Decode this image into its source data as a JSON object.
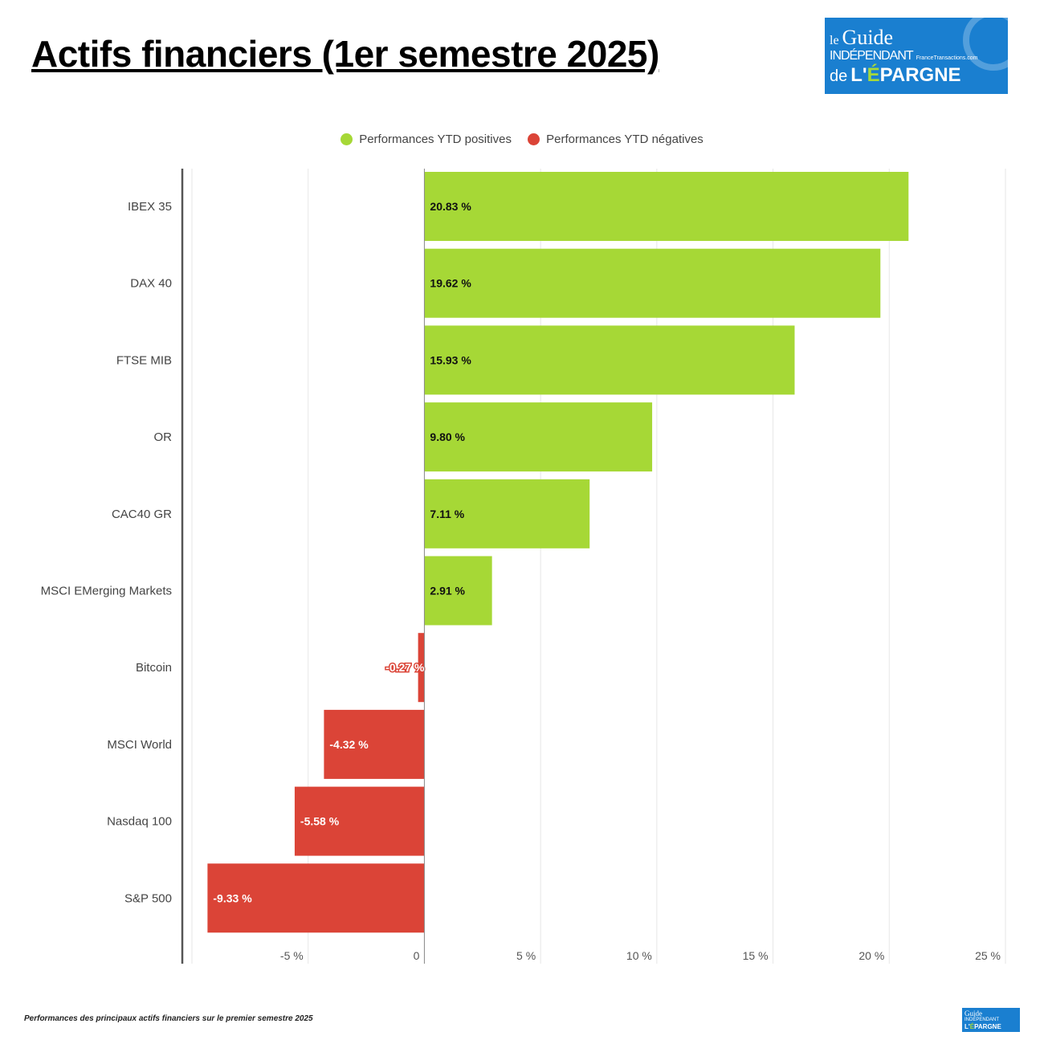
{
  "title": "Actifs financiers (1er semestre 2025)",
  "logo": {
    "line1": "le",
    "line2": "Guide",
    "line3": "INDÉPENDANT",
    "line4": "de",
    "line5": "L'ÉPARGNE",
    "site": "FranceTransactions.com"
  },
  "footer": "Performances des principaux actifs financiers sur le premier semestre 2025",
  "colors": {
    "positive": "#a6d836",
    "negative": "#db4437",
    "grid": "#e6e6e6",
    "axis": "#555555"
  },
  "chart_data": {
    "type": "bar",
    "orientation": "horizontal",
    "categories": [
      "IBEX 35",
      "DAX 40",
      "FTSE MIB",
      "OR",
      "CAC40 GR",
      "MSCI EMerging Markets",
      "Bitcoin",
      "MSCI World",
      "Nasdaq 100",
      "S&P 500"
    ],
    "values": [
      20.83,
      19.62,
      15.93,
      9.8,
      7.11,
      2.91,
      -0.27,
      -4.32,
      -5.58,
      -9.33
    ],
    "data_labels": [
      "20.83 %",
      "19.62 %",
      "15.93 %",
      "9.80 %",
      "7.11 %",
      "2.91 %",
      "-0.27 %",
      "-4.32 %",
      "-5.58 %",
      "-9.33 %"
    ],
    "xlim": [
      -10,
      25
    ],
    "ticks": [
      -5,
      0,
      5,
      10,
      15,
      20,
      25
    ],
    "tick_labels": [
      "-5 %",
      "0",
      "5 %",
      "10 %",
      "15 %",
      "20 %",
      "25 %"
    ],
    "grid": true,
    "legend": {
      "placement": "top",
      "entries": [
        "Performances YTD positives",
        "Performances YTD négatives"
      ]
    }
  }
}
